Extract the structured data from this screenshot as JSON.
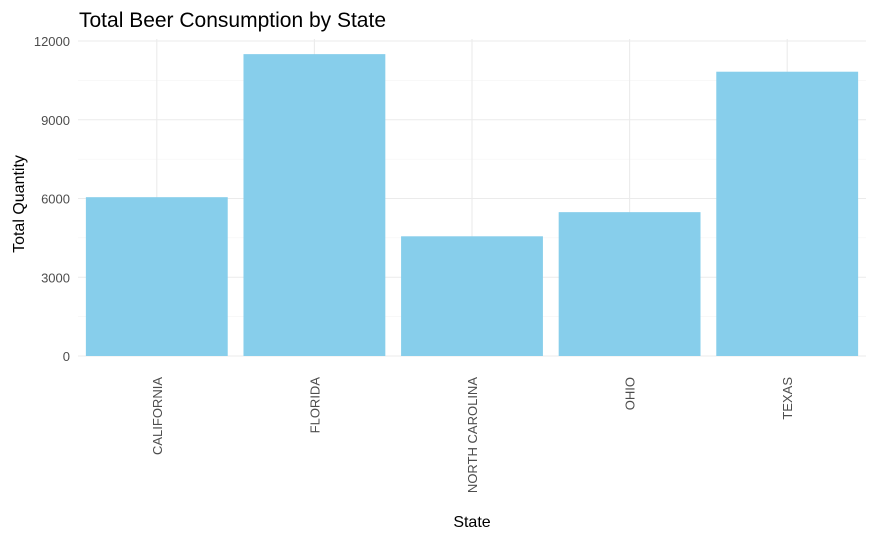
{
  "chart_data": {
    "type": "bar",
    "title": "Total Beer Consumption by State",
    "xlabel": "State",
    "ylabel": "Total Quantity",
    "categories": [
      "CALIFORNIA",
      "FLORIDA",
      "NORTH CAROLINA",
      "OHIO",
      "TEXAS"
    ],
    "values": [
      6050,
      11500,
      4560,
      5480,
      10830
    ],
    "ylim": [
      0,
      12000
    ],
    "yticks": [
      0,
      3000,
      6000,
      9000,
      12000
    ],
    "ytick_labels": [
      "0",
      "3000",
      "6000",
      "9000",
      "12000"
    ],
    "bar_color": "#87CEEB",
    "grid": true,
    "legend": "none"
  }
}
